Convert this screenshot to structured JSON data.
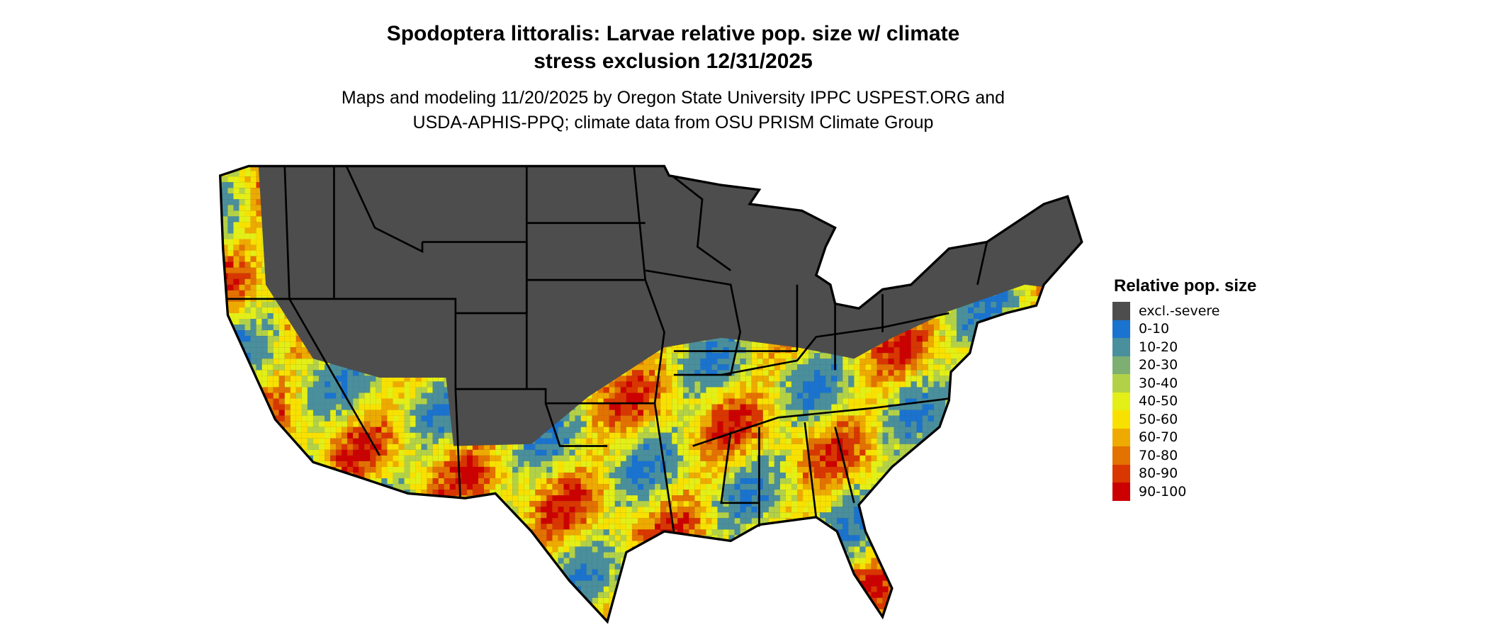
{
  "title_line1": "Spodoptera littoralis: Larvae relative pop. size w/ climate",
  "title_line2": "stress exclusion 12/31/2025",
  "subtitle_line1": "Maps and modeling 11/20/2025 by Oregon State University IPPC USPEST.ORG and",
  "subtitle_line2": "USDA-APHIS-PPQ; climate data from OSU PRISM Climate Group",
  "map": {
    "region": "Conterminous United States",
    "excluded_color": "#4d4d4d",
    "border_color": "#000000"
  },
  "legend": {
    "title": "Relative pop. size",
    "items": [
      {
        "label": "excl.-severe",
        "color": "#4d4d4d"
      },
      {
        "label": "0-10",
        "color": "#1a73cf"
      },
      {
        "label": "10-20",
        "color": "#4a8f9c"
      },
      {
        "label": "20-30",
        "color": "#7eaf72"
      },
      {
        "label": "30-40",
        "color": "#b3d147"
      },
      {
        "label": "40-50",
        "color": "#e3ef16"
      },
      {
        "label": "50-60",
        "color": "#f8e100"
      },
      {
        "label": "60-70",
        "color": "#eeaa00"
      },
      {
        "label": "70-80",
        "color": "#e37200"
      },
      {
        "label": "80-90",
        "color": "#d93600"
      },
      {
        "label": "90-100",
        "color": "#cc0000"
      }
    ]
  }
}
